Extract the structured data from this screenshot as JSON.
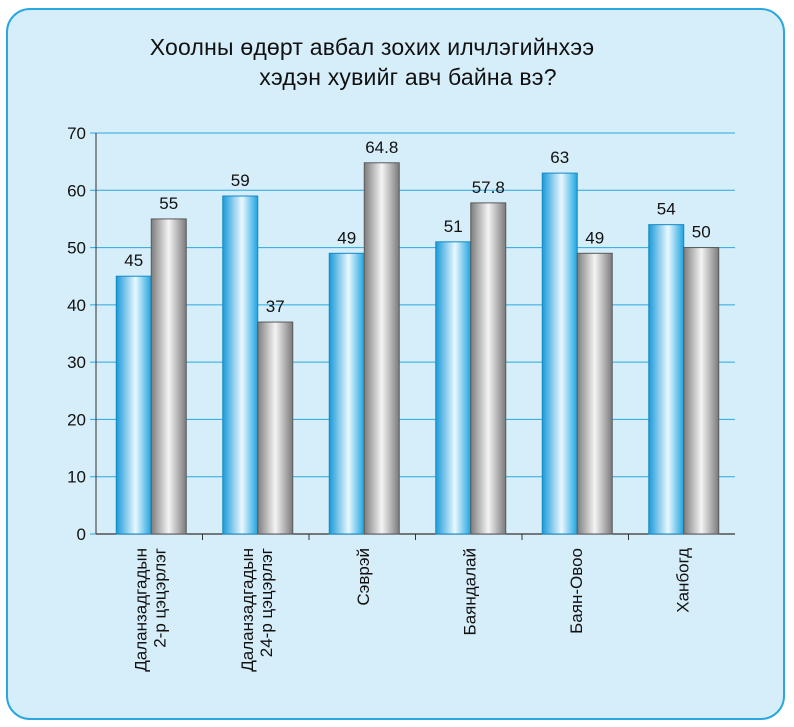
{
  "chart_data": {
    "type": "bar",
    "title_line1": "Хоолны өдөрт авбал зохих илчлэгийнхээ",
    "title_line2": "хэдэн хувийг авч байна вэ?",
    "categories": [
      [
        "Даланзадгадын",
        "2-р цэцэрлэг"
      ],
      [
        "Даланзадгадын",
        "24-р цэцэрлэг"
      ],
      [
        "Сэврэй"
      ],
      [
        "Баяндалай"
      ],
      [
        "Баян-Овоо"
      ],
      [
        "Ханбогд"
      ]
    ],
    "series": [
      {
        "values": [
          45,
          59,
          49,
          51,
          63,
          54
        ],
        "color": "#1ea4e0"
      },
      {
        "values": [
          55,
          37,
          64.8,
          57.8,
          49,
          50
        ],
        "color": "#8a8a8a"
      }
    ],
    "value_labels": [
      [
        "45",
        "59",
        "49",
        "51",
        "63",
        "54"
      ],
      [
        "55",
        "37",
        "64.8",
        "57.8",
        "49",
        "50"
      ]
    ],
    "y_ticks": [
      "0",
      "10",
      "20",
      "30",
      "40",
      "50",
      "60",
      "70"
    ],
    "ylim": [
      0,
      70
    ],
    "grid": true,
    "grid_color": "#2aa7df",
    "frame_color": "#2aa7df",
    "background": "#d6eef9"
  }
}
